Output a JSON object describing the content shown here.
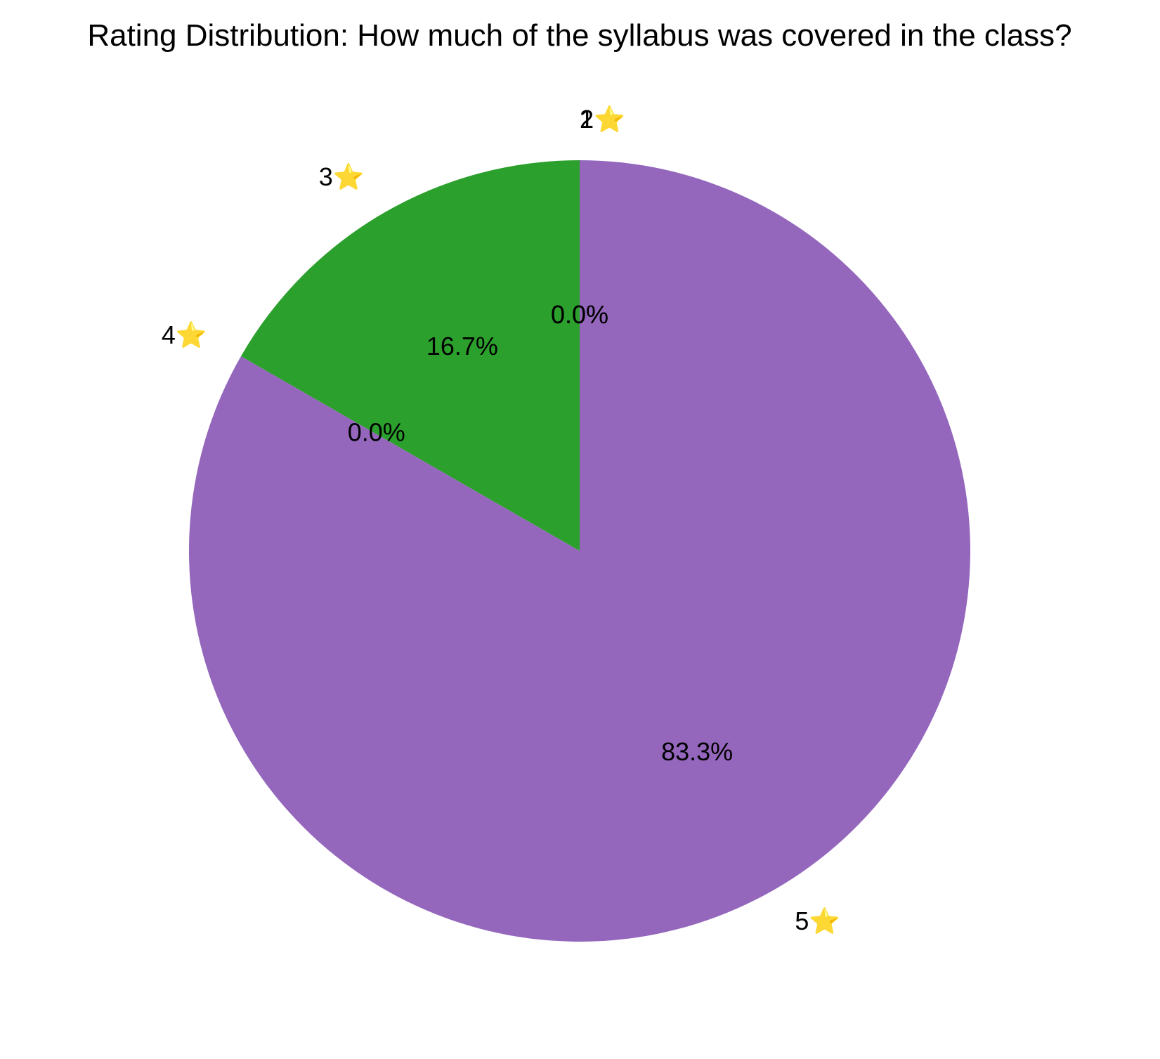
{
  "chart_data": {
    "type": "pie",
    "title": "Rating Distribution: How much of the syllabus was covered in the class?",
    "categories": [
      "1⭐",
      "2⭐",
      "3⭐",
      "4⭐",
      "5⭐"
    ],
    "values": [
      0.0,
      0.0,
      16.7,
      0.0,
      83.3
    ],
    "pct_labels": [
      "0.0%",
      "0.0%",
      "16.7%",
      "0.0%",
      "83.3%"
    ],
    "colors": [
      "#1f77b4",
      "#ff7f0e",
      "#2ca02c",
      "#d62728",
      "#9467bd"
    ],
    "start_angle_deg": 90,
    "direction": "counterclockwise",
    "legend": "none"
  }
}
